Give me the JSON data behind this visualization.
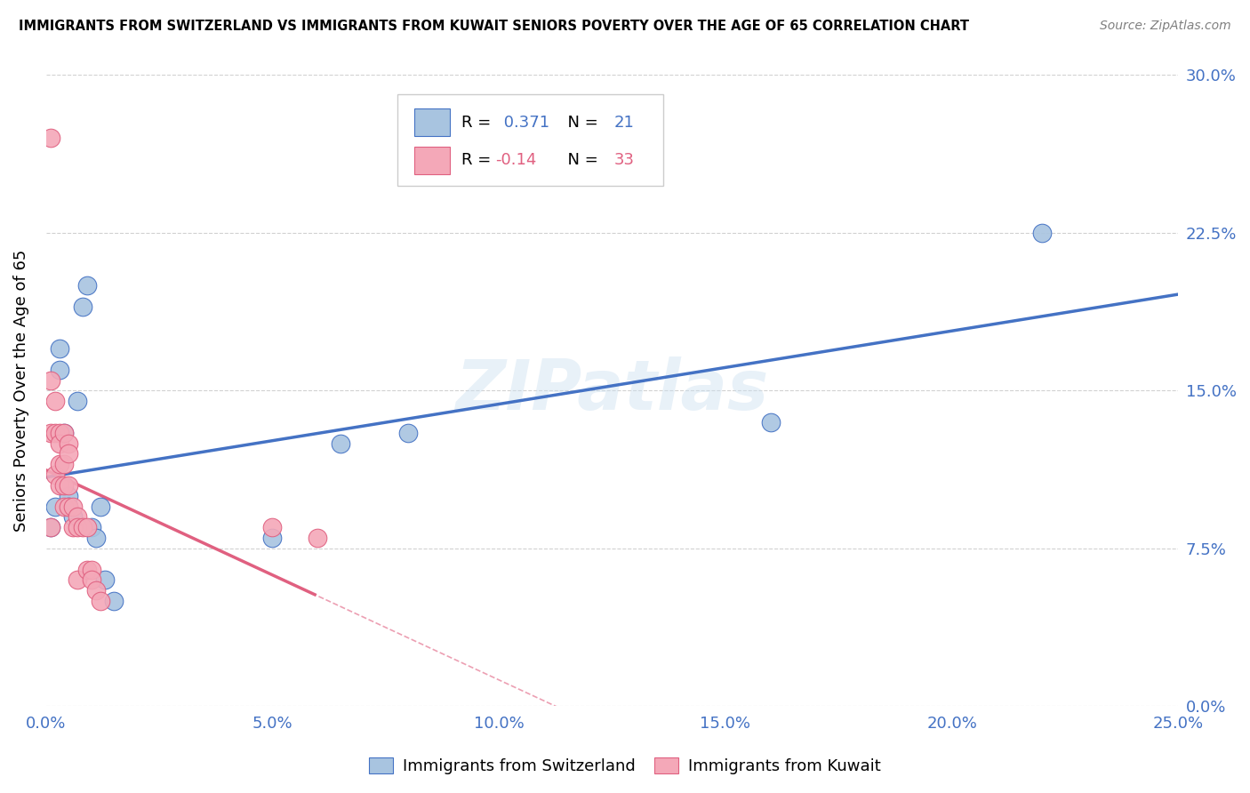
{
  "title": "IMMIGRANTS FROM SWITZERLAND VS IMMIGRANTS FROM KUWAIT SENIORS POVERTY OVER THE AGE OF 65 CORRELATION CHART",
  "source": "Source: ZipAtlas.com",
  "ylabel_label": "Seniors Poverty Over the Age of 65",
  "legend_label1": "Immigrants from Switzerland",
  "legend_label2": "Immigrants from Kuwait",
  "R1": 0.371,
  "N1": 21,
  "R2": -0.14,
  "N2": 33,
  "color_swiss": "#a8c4e0",
  "color_kuwait": "#f4a8b8",
  "color_line_swiss": "#4472c4",
  "color_line_kuwait": "#e06080",
  "background": "#ffffff",
  "watermark_text": "ZIPatlas",
  "swiss_x": [
    0.001,
    0.002,
    0.003,
    0.003,
    0.004,
    0.005,
    0.005,
    0.006,
    0.007,
    0.008,
    0.009,
    0.01,
    0.011,
    0.012,
    0.013,
    0.015,
    0.05,
    0.065,
    0.08,
    0.16,
    0.22
  ],
  "swiss_y": [
    0.085,
    0.095,
    0.16,
    0.17,
    0.13,
    0.1,
    0.095,
    0.09,
    0.145,
    0.19,
    0.2,
    0.085,
    0.08,
    0.095,
    0.06,
    0.05,
    0.08,
    0.125,
    0.13,
    0.135,
    0.225
  ],
  "kuwait_x": [
    0.001,
    0.001,
    0.001,
    0.001,
    0.002,
    0.002,
    0.002,
    0.003,
    0.003,
    0.003,
    0.003,
    0.004,
    0.004,
    0.004,
    0.004,
    0.005,
    0.005,
    0.005,
    0.005,
    0.006,
    0.006,
    0.007,
    0.007,
    0.007,
    0.008,
    0.009,
    0.009,
    0.01,
    0.01,
    0.011,
    0.012,
    0.05,
    0.06
  ],
  "kuwait_y": [
    0.27,
    0.155,
    0.13,
    0.085,
    0.145,
    0.13,
    0.11,
    0.13,
    0.125,
    0.115,
    0.105,
    0.13,
    0.115,
    0.105,
    0.095,
    0.125,
    0.12,
    0.105,
    0.095,
    0.095,
    0.085,
    0.09,
    0.085,
    0.06,
    0.085,
    0.085,
    0.065,
    0.065,
    0.06,
    0.055,
    0.05,
    0.085,
    0.08
  ],
  "xlim": [
    0.0,
    0.25
  ],
  "ylim": [
    0.0,
    0.3
  ],
  "xtick_values": [
    0.0,
    0.05,
    0.1,
    0.15,
    0.2,
    0.25
  ],
  "ytick_values": [
    0.0,
    0.075,
    0.15,
    0.225,
    0.3
  ]
}
